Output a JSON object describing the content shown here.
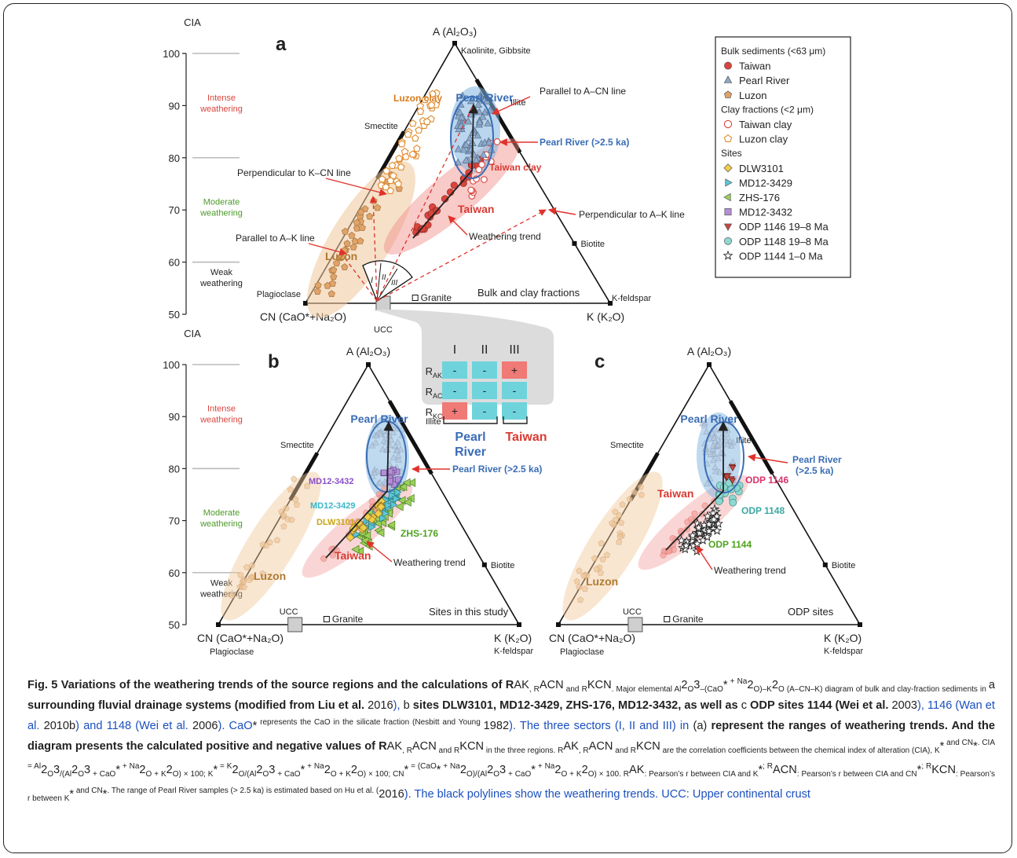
{
  "panels": {
    "a": {
      "letter": "a",
      "apex_top": "A (Al₂O₃)",
      "apex_top_note": "Kaolinite, Gibbsite",
      "apex_left": "CN (CaO*+Na₂O)",
      "apex_right": "K (K₂O)",
      "annotations": {
        "pearl_river": "Pearl River",
        "pearl_river_25": "Pearl River (>2.5 ka)",
        "taiwan_clay": "Taiwan clay",
        "luzon_clay": "Luzon clay",
        "taiwan": "Taiwan",
        "luzon": "Luzon",
        "smectite": "Smectite",
        "illite": "Illite",
        "biotite": "Biotite",
        "kfeldspar": "K-feldspar",
        "plagioclase": "Plagioclase",
        "granite": "Granite",
        "ucc": "UCC",
        "parallel_acn": "Parallel to A–CN line",
        "perp_kcn": "Perpendicular to K–CN line",
        "perp_ak": "Perpendicular to A–K line",
        "parallel_ak": "Parallel to A–K line",
        "weathering_trend": "Weathering trend",
        "bulk_clay": "Bulk and clay fractions",
        "sector_1": "I",
        "sector_2": "II",
        "sector_3": "III"
      }
    },
    "b": {
      "letter": "b",
      "apex_top": "A (Al₂O₃)",
      "apex_left": "CN (CaO*+Na₂O)",
      "apex_left_note": "Plagioclase",
      "apex_right": "K (K₂O)",
      "apex_right_note": "K-feldspar",
      "annotations": {
        "pearl_river": "Pearl River",
        "pearl_river_25": "Pearl River (>2.5 ka)",
        "md3432": "MD12-3432",
        "md3429": "MD12-3429",
        "dlw": "DLW3101",
        "zhs": "ZHS-176",
        "taiwan": "Taiwan",
        "luzon": "Luzon",
        "smectite": "Smectite",
        "illite": "Illite",
        "biotite": "Biotite",
        "granite": "Granite",
        "ucc": "UCC",
        "weathering_trend": "Weathering trend",
        "sites_study": "Sites in this study"
      }
    },
    "c": {
      "letter": "c",
      "apex_top": "A (Al₂O₃)",
      "apex_left": "CN (CaO*+Na₂O)",
      "apex_left_note": "Plagioclase",
      "apex_right": "K (K₂O)",
      "apex_right_note": "K-feldspar",
      "annotations": {
        "pearl_river": "Pearl River",
        "pearl_river_25a": "Pearl River",
        "pearl_river_25b": "(>2.5 ka)",
        "odp1146": "ODP 1146",
        "odp1148": "ODP 1148",
        "odp1144": "ODP 1144",
        "taiwan": "Taiwan",
        "luzon": "Luzon",
        "smectite": "Smectite",
        "illite": "Illite",
        "biotite": "Biotite",
        "granite": "Granite",
        "ucc": "UCC",
        "weathering_trend": "Weathering trend",
        "odp_sites": "ODP sites"
      }
    }
  },
  "cia_scale": {
    "title": "CIA",
    "ticks": [
      "100",
      "90",
      "80",
      "70",
      "60",
      "50"
    ],
    "intense": [
      "Intense",
      "weathering"
    ],
    "moderate": [
      "Moderate",
      "weathering"
    ],
    "weak": [
      "Weak",
      "weathering"
    ]
  },
  "legend": {
    "group_bulk": "Bulk sediments (<63 μm)",
    "group_clay": "Clay fractions (<2 μm)",
    "group_sites": "Sites",
    "items": [
      {
        "label": "Taiwan",
        "symbol": "circle",
        "color": "#d9453d"
      },
      {
        "label": "Pearl River",
        "symbol": "triangle",
        "color": "#8fa9c9"
      },
      {
        "label": "Luzon",
        "symbol": "pentagon",
        "color": "#e0a36a"
      },
      {
        "label": "Taiwan clay",
        "symbol": "circle-open",
        "color": "#d9453d"
      },
      {
        "label": "Luzon clay",
        "symbol": "pentagon-open",
        "color": "#e08a2a"
      },
      {
        "label": "DLW3101",
        "symbol": "diamond",
        "color": "#f2cc4a"
      },
      {
        "label": "MD12-3429",
        "symbol": "triangle-right",
        "color": "#5bc7d6"
      },
      {
        "label": "ZHS-176",
        "symbol": "triangle-left",
        "color": "#9bd15a"
      },
      {
        "label": "MD12-3432",
        "symbol": "square",
        "color": "#b38fd6"
      },
      {
        "label": "ODP 1146 19–8 Ma",
        "symbol": "triangle-down",
        "color": "#c9473f"
      },
      {
        "label": "ODP 1148 19–8 Ma",
        "symbol": "circle",
        "color": "#8fd8d2"
      },
      {
        "label": "ODP 1144 1–0 Ma",
        "symbol": "star",
        "color": "#ffffff"
      }
    ]
  },
  "sector_table": {
    "headers": [
      "I",
      "II",
      "III"
    ],
    "rows": [
      {
        "label": "R",
        "sub": "AK",
        "values": [
          "-",
          "-",
          "+"
        ]
      },
      {
        "label": "R",
        "sub": "ACN",
        "values": [
          "-",
          "-",
          "-"
        ]
      },
      {
        "label": "R",
        "sub": "KCN",
        "values": [
          "+",
          "-",
          "-"
        ]
      }
    ],
    "group_pearl": [
      "Pearl",
      "River"
    ],
    "group_taiwan": "Taiwan"
  },
  "colors": {
    "pearl_blue": "#3a6db5",
    "taiwan_red": "#d93a32",
    "luzon_brown": "#b07a30",
    "luzon_orange": "#d87a1a",
    "arrow_red": "#e0322b",
    "cell_cyan": "#6fd3dc",
    "cell_red": "#ef7a76"
  },
  "caption": {
    "fig_label": "Fig. 5",
    "text_parts": [
      " Variations of the weathering trends of the source regions and the calculations of R",
      "AK",
      ", R",
      "ACN",
      " and R",
      "KCN",
      ". Major elemental Al",
      "2",
      "O",
      "3",
      "–(CaO",
      "*",
      " + Na",
      "2",
      "O)–K",
      "2",
      "O (A–CN–K) diagram of bulk and clay-fraction sediments in ",
      "a",
      " surrounding fluvial drainage systems (modified from Liu et al. ",
      "2016",
      "), ",
      "b",
      " sites DLW3101, MD12-3429, ZHS-176, MD12-3432, as well as ",
      "c",
      " ODP sites 1144 (Wei et al. ",
      "2003",
      "), 1146 (Wan et al. ",
      "2010b",
      ") and 1148 (Wei et al. ",
      "2006",
      "). CaO",
      "*",
      " represents the CaO in the silicate fraction (Nesbitt and Young ",
      "1982",
      "). The three sectors (I, II and III) in ",
      "(a)",
      " represent the ranges of weathering trends. And the diagram presents the calculated positive and negative values of R",
      "AK",
      ", R",
      "ACN",
      " and R",
      "KCN",
      " in the three regions. R",
      "AK",
      ", R",
      "ACN",
      " and R",
      "KCN",
      " are the correlation coefficients between the chemical index of alteration (CIA), K",
      "*",
      " and CN",
      "*",
      ". CIA = Al",
      "2",
      "O",
      "3",
      "/(Al",
      "2",
      "O",
      "3",
      " + CaO",
      "*",
      " + Na",
      "2",
      "O + K",
      "2",
      "O) × 100; K",
      "*",
      " = K",
      "2",
      "O/(Al",
      "2",
      "O",
      "3",
      " + CaO",
      "*",
      " + Na",
      "2",
      "O + K",
      "2",
      "O) × 100; CN",
      "*",
      " = (CaO",
      "*",
      " + Na",
      "2",
      "O)/(Al",
      "2",
      "O",
      "3",
      " + CaO",
      "*",
      " + Na",
      "2",
      "O + K",
      "2",
      "O) × 100. R",
      "AK",
      ": Pearson’s r between CIA and K",
      "*",
      "; R",
      "ACN",
      ": Pearson’s r between CIA and CN",
      "*",
      "; R",
      "KCN",
      ": Pearson’s r between K",
      "*",
      " and CN",
      "*",
      ". The range of Pearl River samples (> 2.5 ka) is estimated based on Hu et al. (",
      "2016",
      "). The black polylines show the weathering trends. UCC: Upper continental crust"
    ],
    "part_styles": [
      "b",
      "n",
      "sub",
      "n",
      "sub",
      "n",
      "sub",
      "n",
      "sub",
      "n",
      "sub",
      "n",
      "sup",
      "n",
      "sub",
      "n",
      "sub",
      "n",
      "b",
      "n",
      "cite",
      "n",
      "b",
      "n",
      "b",
      "n",
      "cite",
      "n",
      "cite",
      "n",
      "cite",
      "n",
      "sup",
      "n",
      "cite",
      "n",
      "b",
      "n",
      "sub",
      "n",
      "sub",
      "n",
      "sub",
      "n",
      "sub",
      "n",
      "sub",
      "n",
      "sub",
      "n",
      "sup",
      "n",
      "sup",
      "n",
      "sub",
      "n",
      "sub",
      "n",
      "sub",
      "n",
      "sub",
      "n",
      "sup",
      "n",
      "sub",
      "n",
      "sub",
      "n",
      "sup",
      "n",
      "sub",
      "n",
      "sub",
      "n",
      "sub",
      "n",
      "sup",
      "n",
      "sub",
      "n",
      "sub",
      "n",
      "sup",
      "n",
      "sup",
      "n",
      "sub",
      "n",
      "sub",
      "n",
      "sub",
      "n",
      "sup",
      "n",
      "sub",
      "n",
      "sub",
      "n",
      "sub",
      "n",
      "sup",
      "n",
      "sub",
      "n",
      "sup",
      "n",
      "sub",
      "n",
      "sup",
      "n",
      "sup",
      "n",
      "cite",
      "n"
    ]
  }
}
